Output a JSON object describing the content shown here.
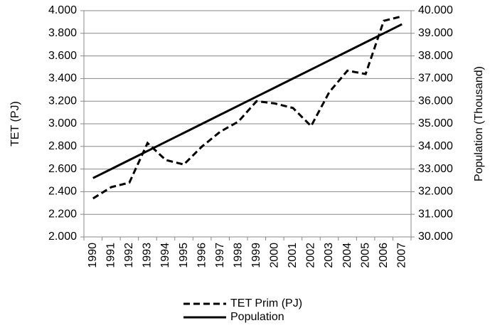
{
  "chart_data": {
    "type": "line",
    "y_label": "TET  (PJ)",
    "y2_label": "Population  (Thousand)",
    "categories": [
      "1990",
      "1991",
      "1992",
      "1993",
      "1994",
      "1995",
      "1996",
      "1997",
      "1998",
      "1999",
      "2000",
      "2001",
      "2002",
      "2003",
      "2004",
      "2005",
      "2006",
      "2007"
    ],
    "series": [
      {
        "name": "TET Prim (PJ)",
        "color": "#000000",
        "dash": true,
        "values": [
          2.34,
          2.44,
          2.48,
          2.83,
          2.68,
          2.64,
          2.8,
          2.93,
          3.02,
          3.2,
          3.18,
          3.14,
          2.98,
          3.28,
          3.47,
          3.44,
          3.91,
          3.95
        ]
      },
      {
        "name": "Population",
        "color": "#000000",
        "dash": false,
        "axis": "y2",
        "values": [
          32.6,
          33.0,
          33.4,
          33.8,
          34.2,
          34.6,
          35.0,
          35.4,
          35.8,
          36.2,
          36.6,
          37.0,
          37.4,
          37.8,
          38.2,
          38.6,
          39.0,
          39.4
        ]
      }
    ],
    "ylim": [
      2,
      4
    ],
    "yticks": [
      {
        "value": 2,
        "label": "2.000"
      },
      {
        "value": 2.2,
        "label": "2.200"
      },
      {
        "value": 2.4,
        "label": "2.400"
      },
      {
        "value": 2.6,
        "label": "2.600"
      },
      {
        "value": 2.8,
        "label": "2.800"
      },
      {
        "value": 3,
        "label": "3.000"
      },
      {
        "value": 3.2,
        "label": "3.200"
      },
      {
        "value": 3.4,
        "label": "3.400"
      },
      {
        "value": 3.6,
        "label": "3.600"
      },
      {
        "value": 3.8,
        "label": "3.800"
      },
      {
        "value": 4,
        "label": "4.000"
      }
    ],
    "y2lim": [
      30,
      40
    ],
    "y2ticks": [
      {
        "value": 30,
        "label": "30.000"
      },
      {
        "value": 31,
        "label": "31.000"
      },
      {
        "value": 32,
        "label": "32.000"
      },
      {
        "value": 33,
        "label": "33.000"
      },
      {
        "value": 34,
        "label": "34.000"
      },
      {
        "value": 35,
        "label": "35.000"
      },
      {
        "value": 36,
        "label": "36.000"
      },
      {
        "value": 37,
        "label": "37.000"
      },
      {
        "value": 38,
        "label": "38.000"
      },
      {
        "value": 39,
        "label": "39.000"
      },
      {
        "value": 40,
        "label": "40.000"
      }
    ],
    "grid": true,
    "legend": "bottom"
  }
}
